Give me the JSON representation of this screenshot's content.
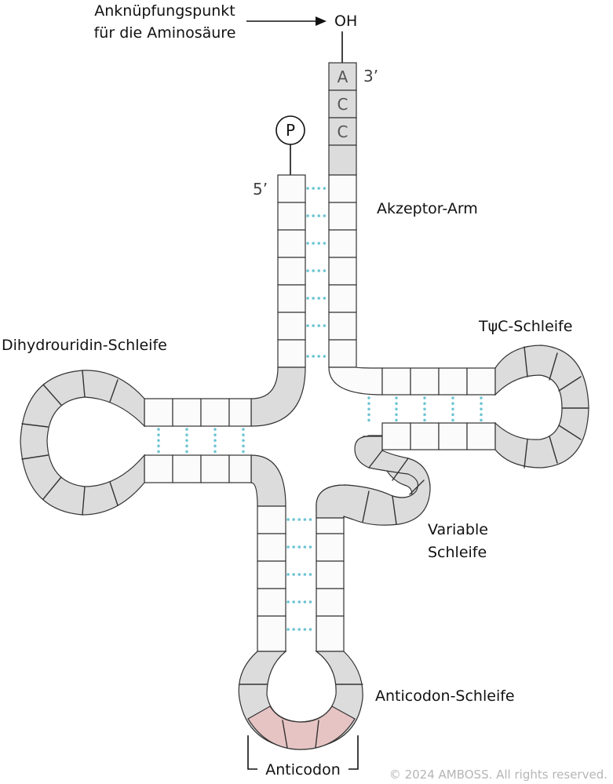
{
  "labels": {
    "attachment_line1": "Anknüpfungspunkt",
    "attachment_line2": "für die Aminosäure",
    "oh": "OH",
    "three_prime": "3’",
    "five_prime": "5’",
    "phosphate": "P",
    "acceptor_arm": "Akzeptor-Arm",
    "tpsic_loop": "TψC-Schleife",
    "dihydrouridine_loop": "Dihydrouridin-Schleife",
    "variable_loop_line1": "Variable",
    "variable_loop_line2": "Schleife",
    "anticodon_loop": "Anticodon-Schleife",
    "anticodon": "Anticodon"
  },
  "acc_bases": [
    "A",
    "C",
    "C"
  ],
  "copyright": "© 2024 AMBOSS. All rights reserved.",
  "colors": {
    "paired_base": "#fbfbfb",
    "loop_base": "#dcdcdc",
    "anticodon_base": "#e7c4c4",
    "hydrogen_bond": "#6cc4d3"
  }
}
